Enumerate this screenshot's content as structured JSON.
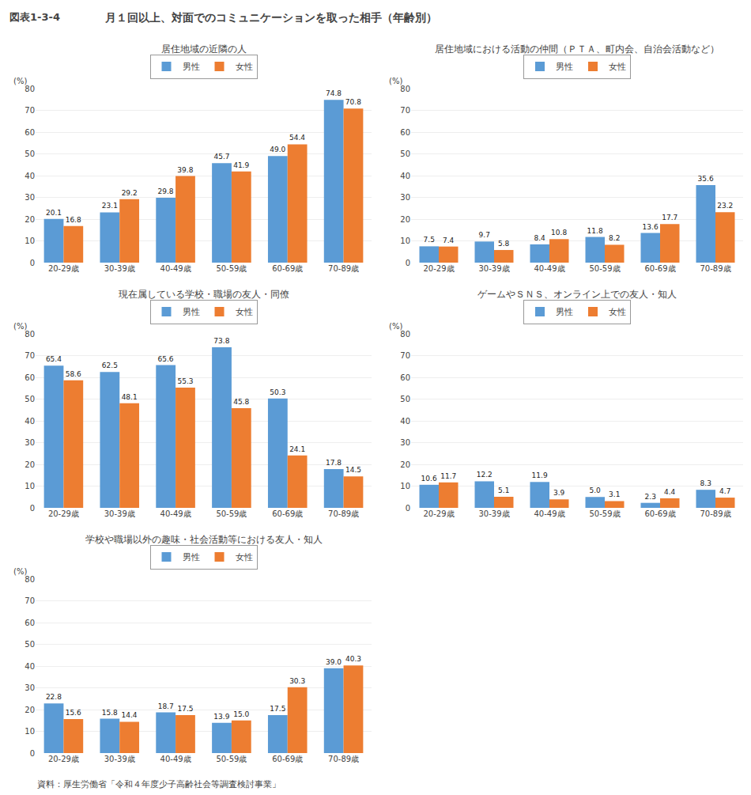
{
  "title": "図表1-3-4",
  "subtitle": "月１回以上、対面でのコミュニケーションを取った相手（年齢別）",
  "annotations": [
    "資料：厚生労働省「令和４年度少子高齢社会等調査検討事業」"
  ],
  "chart_data": [
    {
      "type": "bar",
      "title": "居住地域の近隣の人",
      "ylabel": "(%)",
      "categories": [
        "20-29歳",
        "30-39歳",
        "40-49歳",
        "50-59歳",
        "60-69歳",
        "70-89歳"
      ],
      "series": [
        {
          "name": "男性",
          "color": "#5B9BD5",
          "values": [
            20.1,
            23.1,
            29.8,
            45.7,
            49.0,
            74.8
          ],
          "value_labels": [
            "20.1",
            "23.1",
            "29.8",
            "45.7",
            "49.0",
            "74.8"
          ]
        },
        {
          "name": "女性",
          "color": "#ED7D31",
          "values": [
            16.8,
            29.2,
            39.8,
            41.9,
            54.4,
            70.8
          ]
        }
      ],
      "ylim": [
        0,
        80
      ],
      "yticks": [
        0,
        10,
        20,
        30,
        40,
        50,
        60,
        70,
        80
      ],
      "grid": true,
      "data_labels": true,
      "legend": "top"
    },
    {
      "type": "bar",
      "title": "居住地域における活動の仲間（ＰＴＡ、町内会、自治会活動など）",
      "ylabel": "(%)",
      "categories": [
        "20-29歳",
        "30-39歳",
        "40-49歳",
        "50-59歳",
        "60-69歳",
        "70-89歳"
      ],
      "series": [
        {
          "name": "男性",
          "color": "#5B9BD5",
          "values": [
            7.5,
            9.7,
            8.4,
            11.8,
            13.6,
            35.6
          ]
        },
        {
          "name": "女性",
          "color": "#ED7D31",
          "values": [
            7.4,
            5.8,
            10.8,
            8.2,
            17.7,
            23.2
          ]
        }
      ],
      "ylim": [
        0,
        80
      ],
      "yticks": [
        0,
        10,
        20,
        30,
        40,
        50,
        60,
        70,
        80
      ],
      "grid": true,
      "data_labels": true,
      "legend": "top"
    },
    {
      "type": "bar",
      "title": "現在属している学校・職場の友人・同僚",
      "ylabel": "(%)",
      "categories": [
        "20-29歳",
        "30-39歳",
        "40-49歳",
        "50-59歳",
        "60-69歳",
        "70-89歳"
      ],
      "series": [
        {
          "name": "男性",
          "color": "#5B9BD5",
          "values": [
            65.4,
            62.5,
            65.6,
            73.8,
            50.3,
            17.8
          ]
        },
        {
          "name": "女性",
          "color": "#ED7D31",
          "values": [
            58.6,
            48.1,
            55.3,
            45.8,
            24.1,
            14.5
          ]
        }
      ],
      "ylim": [
        0,
        80
      ],
      "yticks": [
        0,
        10,
        20,
        30,
        40,
        50,
        60,
        70,
        80
      ],
      "grid": true,
      "data_labels": true,
      "legend": "top"
    },
    {
      "type": "bar",
      "title": "ゲームやＳＮＳ、オンライン上での友人・知人",
      "ylabel": "(%)",
      "categories": [
        "20-29歳",
        "30-39歳",
        "40-49歳",
        "50-59歳",
        "60-69歳",
        "70-89歳"
      ],
      "series": [
        {
          "name": "男性",
          "color": "#5B9BD5",
          "values": [
            10.6,
            12.2,
            11.9,
            5.0,
            2.3,
            8.3
          ],
          "value_labels": [
            "10.6",
            "12.2",
            "11.9",
            "5.0",
            "2.3",
            "8.3"
          ]
        },
        {
          "name": "女性",
          "color": "#ED7D31",
          "values": [
            11.7,
            5.1,
            3.9,
            3.1,
            4.4,
            4.7
          ]
        }
      ],
      "ylim": [
        0,
        80
      ],
      "yticks": [
        0,
        10,
        20,
        30,
        40,
        50,
        60,
        70,
        80
      ],
      "grid": true,
      "data_labels": true,
      "legend": "top"
    },
    {
      "type": "bar",
      "title": "学校や職場以外の趣味・社会活動等における友人・知人",
      "ylabel": "(%)",
      "categories": [
        "20-29歳",
        "30-39歳",
        "40-49歳",
        "50-59歳",
        "60-69歳",
        "70-89歳"
      ],
      "series": [
        {
          "name": "男性",
          "color": "#5B9BD5",
          "values": [
            22.8,
            15.8,
            18.7,
            13.9,
            17.5,
            39.0
          ],
          "value_labels": [
            "22.8",
            "15.8",
            "18.7",
            "13.9",
            "17.5",
            "39.0"
          ]
        },
        {
          "name": "女性",
          "color": "#ED7D31",
          "values": [
            15.6,
            14.4,
            17.5,
            15.0,
            30.3,
            40.3
          ],
          "value_labels": [
            "15.6",
            "14.4",
            "17.5",
            "15.0",
            "30.3",
            "40.3"
          ]
        }
      ],
      "ylim": [
        0,
        80
      ],
      "yticks": [
        0,
        10,
        20,
        30,
        40,
        50,
        60,
        70,
        80
      ],
      "grid": true,
      "data_labels": true,
      "legend": "top"
    }
  ]
}
